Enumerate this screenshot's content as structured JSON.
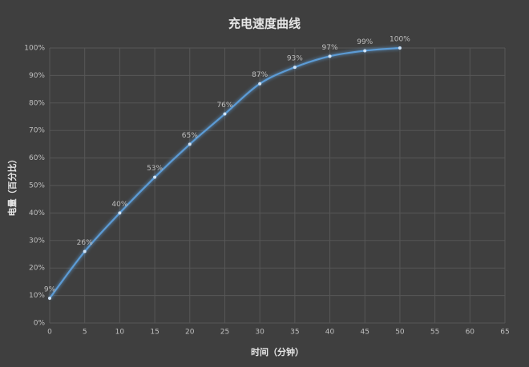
{
  "chart_data": {
    "type": "line",
    "title": "充电速度曲线",
    "x_label": "时间（分钟）",
    "y_label": "电量（百分比）",
    "x": [
      0,
      5,
      10,
      15,
      20,
      25,
      30,
      35,
      40,
      45,
      50
    ],
    "series": [
      {
        "color": "#5b9bd5",
        "values": [
          9,
          26,
          40,
          53,
          65,
          76,
          87,
          93,
          97,
          99,
          100
        ],
        "value_labels": [
          "9%",
          "26%",
          "40%",
          "53%",
          "65%",
          "76%",
          "87%",
          "93%",
          "97%",
          "99%",
          "100%"
        ]
      }
    ],
    "xlim": [
      0,
      65
    ],
    "xticks": [
      0,
      5,
      10,
      15,
      20,
      25,
      30,
      35,
      40,
      45,
      50,
      55,
      60,
      65
    ],
    "ylim": [
      0,
      100
    ],
    "yticks": [
      {
        "value": 0,
        "label": "0%"
      },
      {
        "value": 10,
        "label": "10%"
      },
      {
        "value": 20,
        "label": "20%"
      },
      {
        "value": 30,
        "label": "30%"
      },
      {
        "value": 40,
        "label": "40%"
      },
      {
        "value": 50,
        "label": "50%"
      },
      {
        "value": 60,
        "label": "60%"
      },
      {
        "value": 70,
        "label": "70%"
      },
      {
        "value": 80,
        "label": "80%"
      },
      {
        "value": 90,
        "label": "90%"
      },
      {
        "value": 100,
        "label": "100%"
      }
    ],
    "grid": true
  }
}
